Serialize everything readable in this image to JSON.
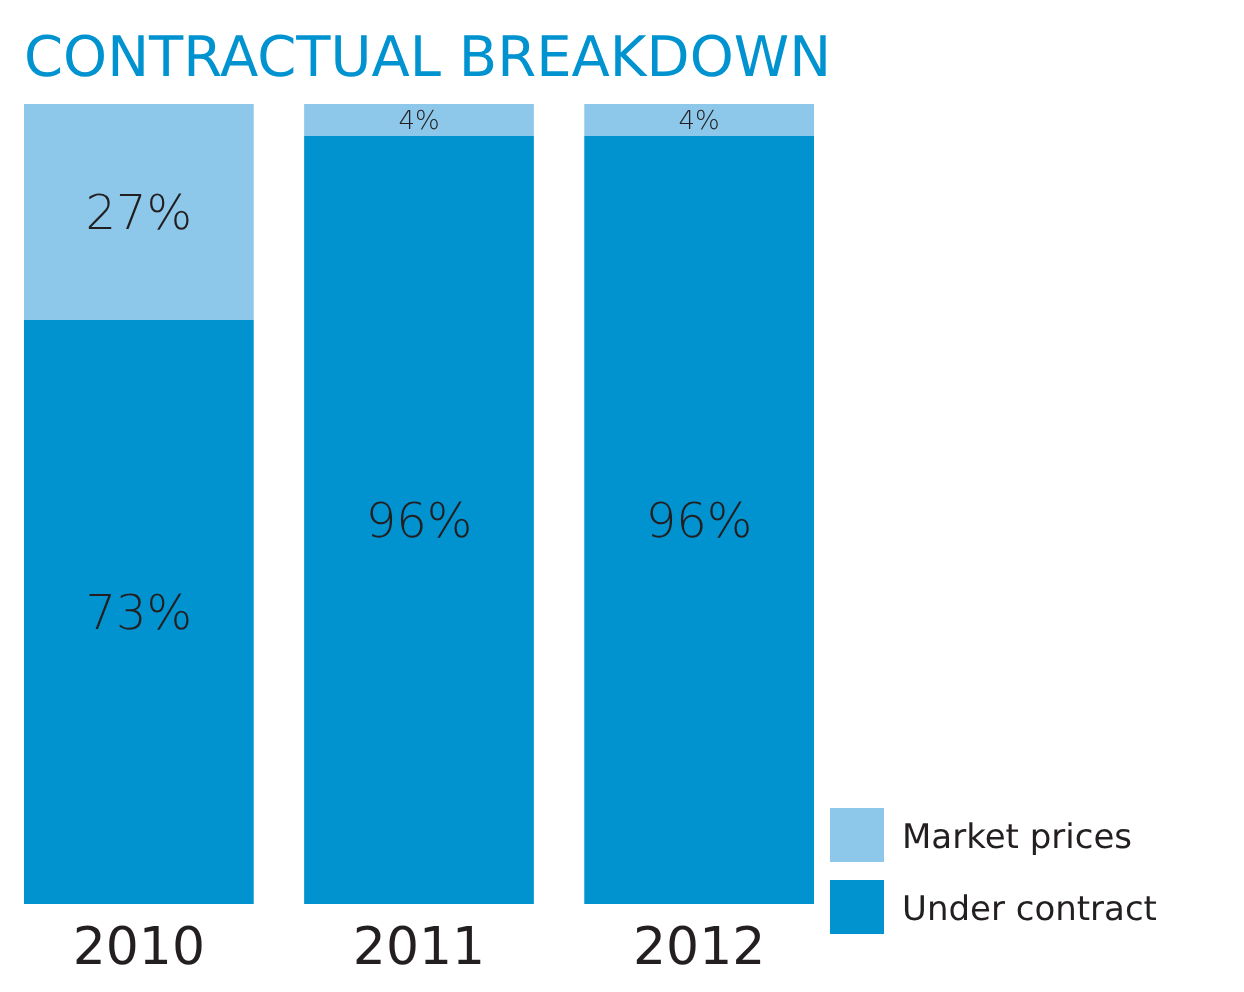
{
  "chart_data": {
    "type": "bar",
    "title": "CONTRACTUAL BREAKDOWN",
    "categories": [
      "2010",
      "2011",
      "2012"
    ],
    "stacked": true,
    "legend": "bottom right",
    "series": [
      {
        "name": "Under contract",
        "color": "#0093d0",
        "values": [
          73,
          96,
          96
        ],
        "value_labels": [
          "73%",
          "96%",
          "96%"
        ]
      },
      {
        "name": "Market prices",
        "color": "#8dc8ea",
        "values": [
          27,
          4,
          4
        ],
        "value_labels": [
          "27%",
          "4%",
          "4%"
        ]
      }
    ]
  }
}
